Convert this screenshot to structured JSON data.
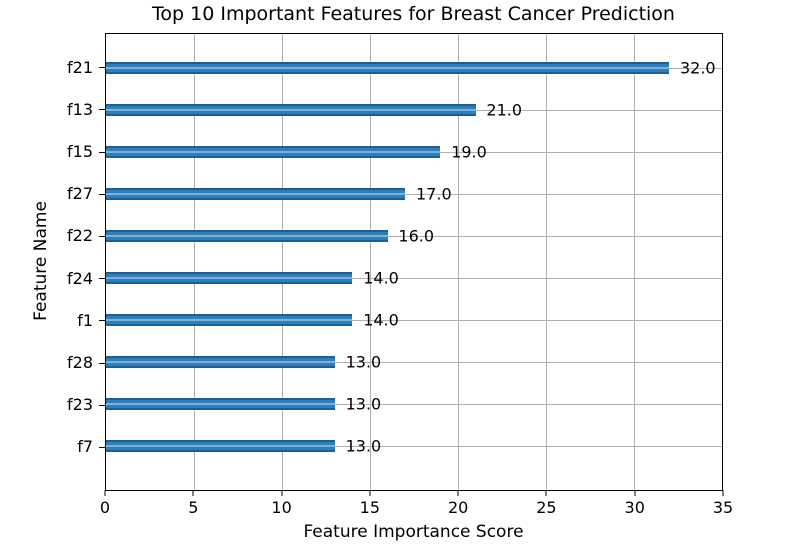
{
  "chart_data": {
    "type": "bar",
    "orientation": "horizontal",
    "title": "Top 10 Important Features for Breast Cancer Prediction",
    "xlabel": "Feature Importance Score",
    "ylabel": "Feature Name",
    "categories": [
      "f21",
      "f13",
      "f15",
      "f27",
      "f22",
      "f24",
      "f1",
      "f28",
      "f23",
      "f7"
    ],
    "values": [
      32,
      21,
      19,
      17,
      16,
      14,
      14,
      13,
      13,
      13
    ],
    "value_labels": [
      "32.0",
      "21.0",
      "19.0",
      "17.0",
      "16.0",
      "14.0",
      "14.0",
      "13.0",
      "13.0",
      "13.0"
    ],
    "xlim": [
      0,
      35
    ],
    "xticks": [
      0,
      5,
      10,
      15,
      20,
      25,
      30,
      35
    ],
    "xtick_labels": [
      "0",
      "5",
      "10",
      "15",
      "20",
      "25",
      "30",
      "35"
    ],
    "grid": true,
    "legend_position": "none",
    "value_label_offset": 0.5,
    "colors": {
      "bar": "#2e7ebc",
      "bar_edge": "#1b5f93",
      "bar_highlight": "#7fb1d6",
      "grid": "#b0b0b0",
      "spine": "#000000",
      "text": "#000000",
      "background": "#ffffff"
    }
  }
}
